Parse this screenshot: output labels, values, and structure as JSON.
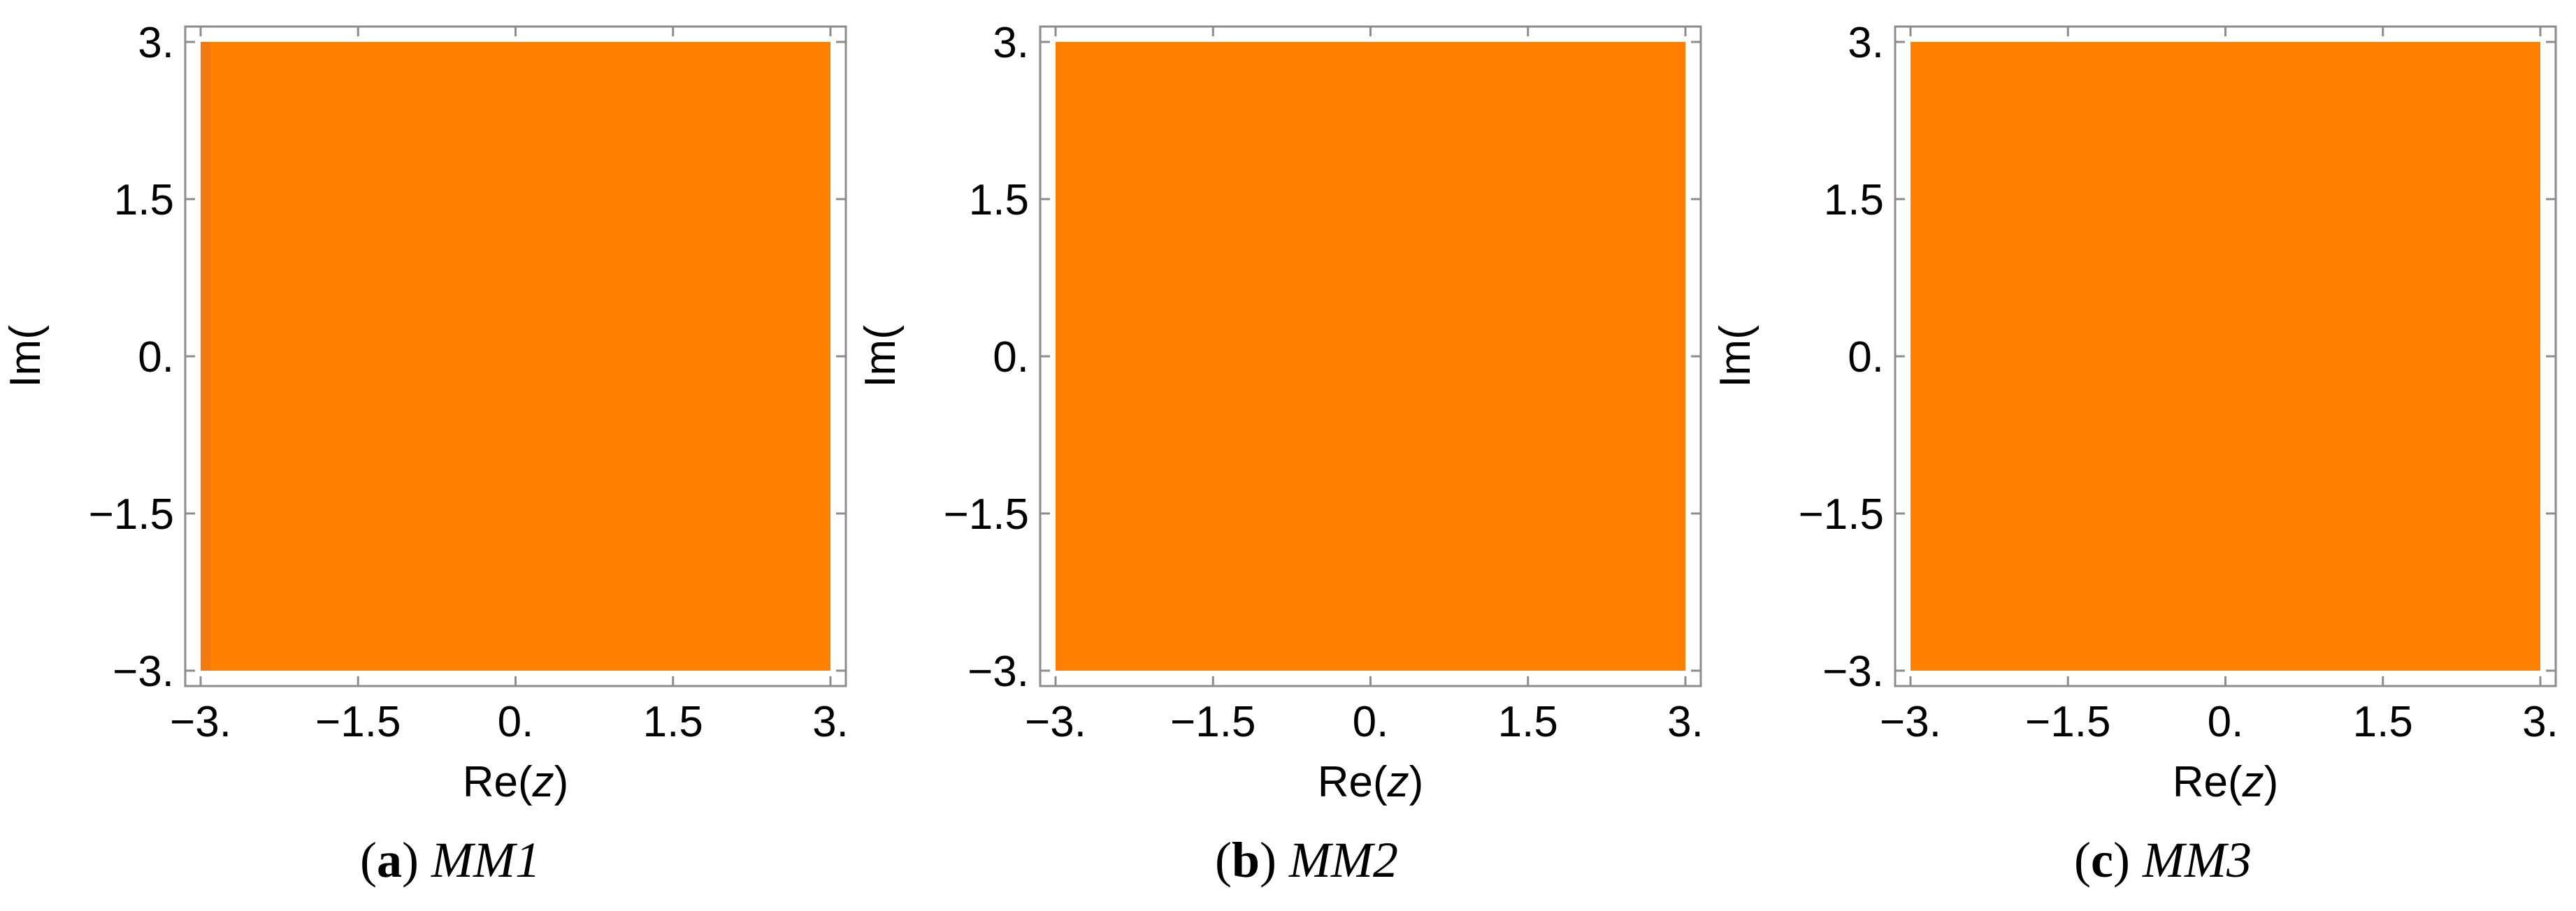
{
  "chart_data": [
    {
      "type": "heatmap",
      "panel_label": "a",
      "method": "MM1",
      "xlabel_prefix": "Re(",
      "xlabel_var": "z",
      "xlabel_suffix": ")",
      "ylabel": "Im(",
      "xlim": [
        -3,
        3
      ],
      "ylim": [
        -3,
        3
      ],
      "x_ticks": [
        -3,
        -1.5,
        0,
        1.5,
        3
      ],
      "y_ticks": [
        -3,
        -1.5,
        0,
        1.5,
        3
      ],
      "x_tick_labels": [
        "−3.",
        "−1.5",
        "0.",
        "1.5",
        "3."
      ],
      "y_tick_labels": [
        "−3.",
        "−1.5",
        "0.",
        "1.5",
        "3."
      ],
      "fill_color": "#FF8000",
      "edge_color": "#F07A10",
      "region": {
        "x": [
          -3,
          3
        ],
        "y": [
          -3,
          3
        ]
      },
      "grid": false
    },
    {
      "type": "heatmap",
      "panel_label": "b",
      "method": "MM2",
      "xlabel_prefix": "Re(",
      "xlabel_var": "z",
      "xlabel_suffix": ")",
      "ylabel": "Im(",
      "xlim": [
        -3,
        3
      ],
      "ylim": [
        -3,
        3
      ],
      "x_ticks": [
        -3,
        -1.5,
        0,
        1.5,
        3
      ],
      "y_ticks": [
        -3,
        -1.5,
        0,
        1.5,
        3
      ],
      "x_tick_labels": [
        "−3.",
        "−1.5",
        "0.",
        "1.5",
        "3."
      ],
      "y_tick_labels": [
        "−3.",
        "−1.5",
        "0.",
        "1.5",
        "3."
      ],
      "fill_color": "#FF8000",
      "edge_color": "#FF8000",
      "region": {
        "x": [
          -3,
          3
        ],
        "y": [
          -3,
          3
        ]
      },
      "grid": false
    },
    {
      "type": "heatmap",
      "panel_label": "c",
      "method": "MM3",
      "xlabel_prefix": "Re(",
      "xlabel_var": "z",
      "xlabel_suffix": ")",
      "ylabel": "Im(",
      "xlim": [
        -3,
        3
      ],
      "ylim": [
        -3,
        3
      ],
      "x_ticks": [
        -3,
        -1.5,
        0,
        1.5,
        3
      ],
      "y_ticks": [
        -3,
        -1.5,
        0,
        1.5,
        3
      ],
      "x_tick_labels": [
        "−3.",
        "−1.5",
        "0.",
        "1.5",
        "3."
      ],
      "y_tick_labels": [
        "−3.",
        "−1.5",
        "0.",
        "1.5",
        "3."
      ],
      "fill_color": "#FF8000",
      "edge_color": "#FF8000",
      "region": {
        "x": [
          -3,
          3
        ],
        "y": [
          -3,
          3
        ]
      },
      "grid": false
    }
  ]
}
